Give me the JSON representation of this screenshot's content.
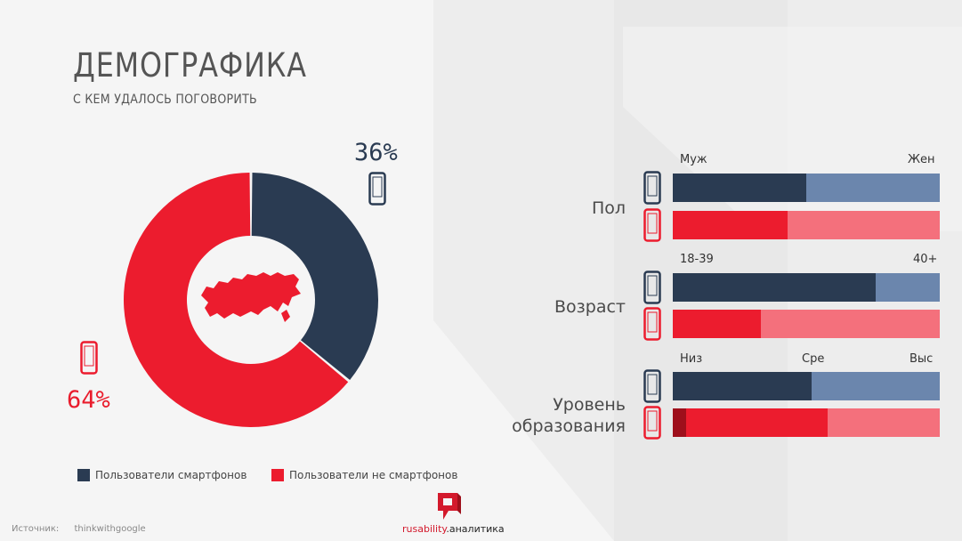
{
  "page": {
    "title": "ДЕМОГРАФИКА",
    "subtitle": "С КЕМ УДАЛОСЬ ПОГОВОРИТЬ"
  },
  "colors": {
    "smart_dark": "#2a3b52",
    "smart_light": "#6b86ad",
    "non_dark": "#ec1c2e",
    "non_light": "#f4707c",
    "non_deep": "#9e0f1b"
  },
  "icons": {
    "smartphone": "smartphone-icon",
    "map": "russia-map-icon",
    "logo": "rusability-logo-icon"
  },
  "chart_data": [
    {
      "type": "pie",
      "variant": "donut",
      "slices": [
        {
          "name": "Пользователи смартфонов",
          "value": 36,
          "label": "36%",
          "color": "#2a3b52"
        },
        {
          "name": "Пользователи не смартфонов",
          "value": 64,
          "label": "64%",
          "color": "#ec1c2e"
        }
      ],
      "legend": {
        "items": [
          "Пользователи смартфонов",
          "Пользователи не смартфонов"
        ],
        "placement": "bottom"
      }
    },
    {
      "type": "bar",
      "orientation": "horizontal",
      "stacked": true,
      "percent_of_total": true,
      "rows": [
        {
          "label": "Пол",
          "categories": [
            "Муж",
            "Жен"
          ],
          "bars": [
            {
              "group": "smartphone",
              "shares": [
                0.5,
                0.5
              ]
            },
            {
              "group": "non-smartphone",
              "shares": [
                0.43,
                0.57
              ]
            }
          ]
        },
        {
          "label": "Возраст",
          "categories": [
            "18-39",
            "40+"
          ],
          "bars": [
            {
              "group": "smartphone",
              "shares": [
                0.76,
                0.24
              ]
            },
            {
              "group": "non-smartphone",
              "shares": [
                0.33,
                0.67
              ]
            }
          ]
        },
        {
          "label": "Уровень образования",
          "label_lines": [
            "Уровень",
            "образования"
          ],
          "categories": [
            "Низ",
            "Сре",
            "Выс"
          ],
          "bars": [
            {
              "group": "smartphone",
              "shares": [
                0.02,
                0.5,
                0.48
              ]
            },
            {
              "group": "non-smartphone",
              "shares": [
                0.05,
                0.53,
                0.42
              ]
            }
          ]
        }
      ]
    }
  ],
  "source": {
    "label": "Источник:",
    "value": "thinkwithgoogle"
  },
  "logo": {
    "brand_main": "rusability",
    "brand_suffix": ".аналитика"
  }
}
